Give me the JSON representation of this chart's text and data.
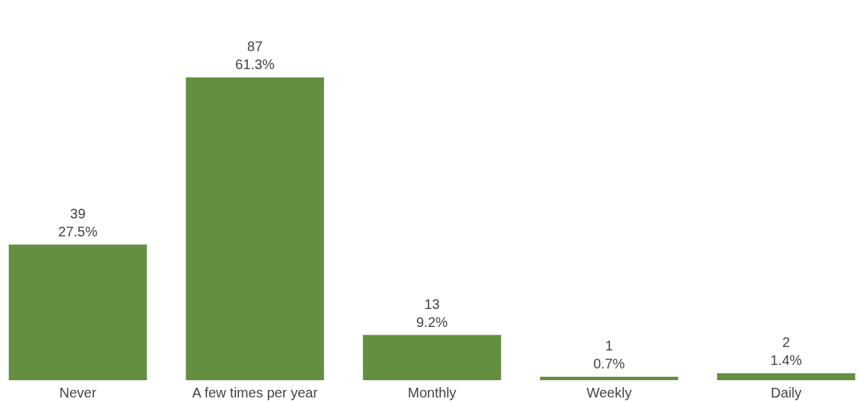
{
  "chart_data": {
    "type": "bar",
    "categories": [
      "Never",
      "A few times per year",
      "Monthly",
      "Weekly",
      "Daily"
    ],
    "values": [
      39,
      87,
      13,
      1,
      2
    ],
    "color": "#648f41",
    "value_labels": [
      "39\n27.5%",
      "87\n61.3%",
      "13\n9.2%",
      "1\n0.7%",
      "2\n1.4%"
    ],
    "tick_labels": "x",
    "grid": false
  }
}
